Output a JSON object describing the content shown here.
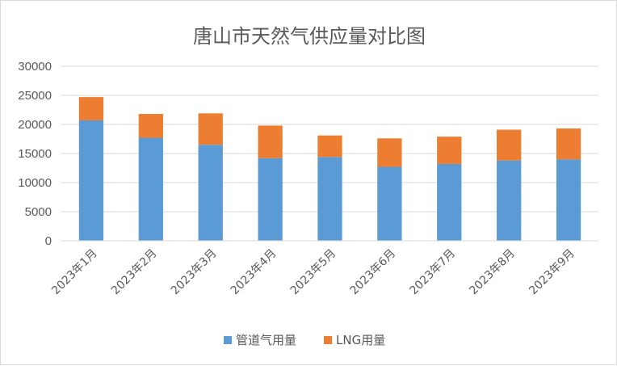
{
  "chart_data": {
    "type": "bar",
    "stacked": true,
    "title": "唐山市天然气供应量对比图",
    "categories": [
      "2023年1月",
      "2023年2月",
      "2023年3月",
      "2023年4月",
      "2023年5月",
      "2023年6月",
      "2023年7月",
      "2023年8月",
      "2023年9月"
    ],
    "series": [
      {
        "name": "管道气用量",
        "color": "#5b9bd5",
        "values": [
          20700,
          17700,
          16500,
          14200,
          14400,
          12700,
          13200,
          13800,
          14000
        ]
      },
      {
        "name": "LNG用量",
        "color": "#ed7d31",
        "values": [
          4000,
          4100,
          5400,
          5600,
          3700,
          4900,
          4700,
          5300,
          5300
        ]
      }
    ],
    "ylim": [
      0,
      30000
    ],
    "yticks": [
      "0",
      "5000",
      "10000",
      "15000",
      "20000",
      "25000",
      "30000"
    ],
    "grid": true,
    "legend": "bottom"
  }
}
